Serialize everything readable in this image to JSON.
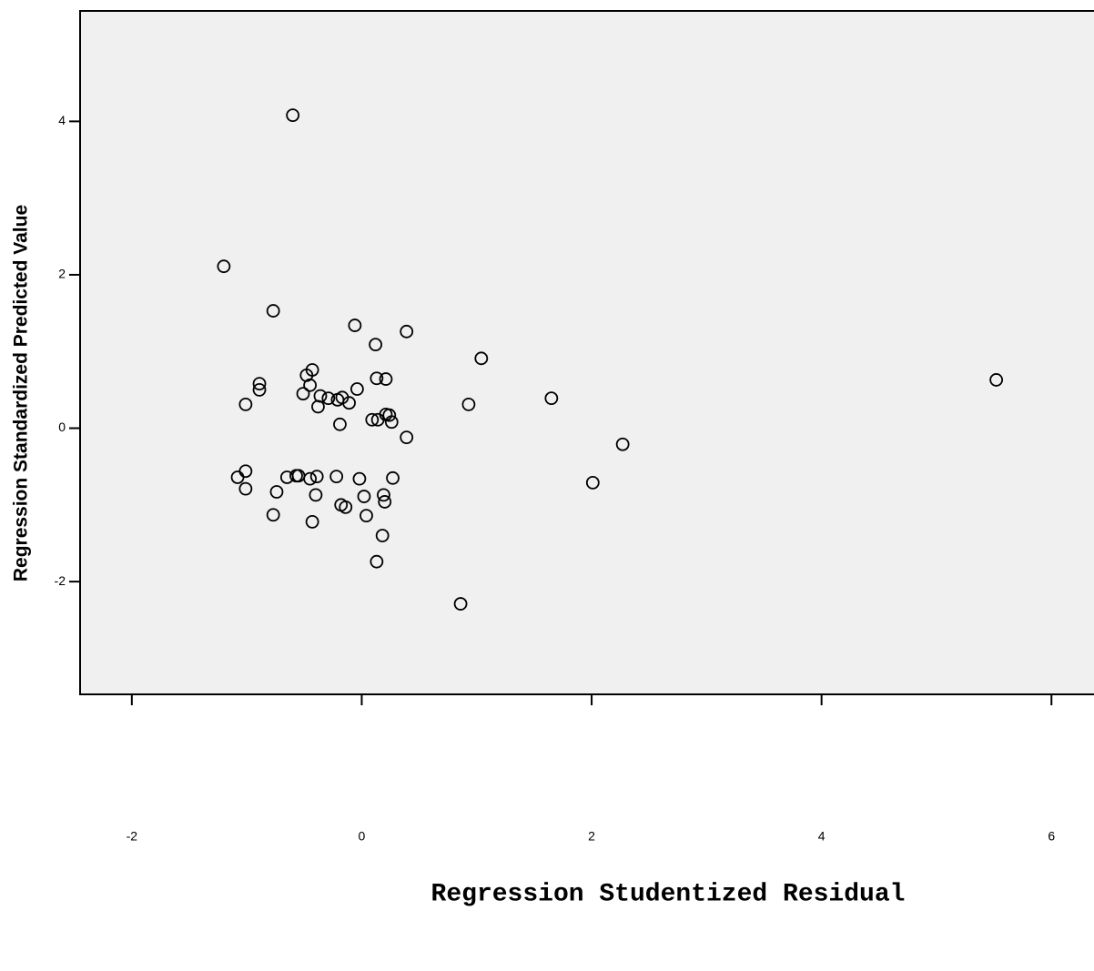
{
  "chart_data": {
    "type": "scatter",
    "xlabel": "Regression Studentized Residual",
    "ylabel": "Regression Standardized Predicted Value",
    "xlim": [
      -2.45,
      6.37
    ],
    "ylim": [
      -3.47,
      5.44
    ],
    "xticks": [
      -2,
      0,
      2,
      4,
      6
    ],
    "yticks": [
      -2,
      0,
      2,
      4
    ],
    "color": "#000000",
    "x": [
      -0.6,
      -1.2,
      -0.77,
      -0.06,
      0.39,
      0.12,
      1.04,
      -0.43,
      -0.48,
      0.13,
      0.21,
      5.52,
      -0.89,
      -0.45,
      -0.89,
      -0.04,
      -0.51,
      -0.36,
      -0.29,
      1.65,
      -0.17,
      -0.21,
      -0.11,
      -1.01,
      0.93,
      -0.38,
      0.21,
      0.24,
      0.09,
      0.14,
      0.26,
      -0.19,
      0.39,
      2.27,
      -1.01,
      -1.08,
      -0.57,
      -0.55,
      -0.65,
      -0.39,
      -0.22,
      -0.45,
      -0.02,
      0.27,
      2.01,
      -1.01,
      -0.74,
      -0.4,
      0.19,
      0.02,
      0.2,
      -0.18,
      -0.14,
      -0.77,
      0.04,
      -0.43,
      0.18,
      0.13,
      0.86
    ],
    "y": [
      4.08,
      2.11,
      1.53,
      1.34,
      1.26,
      1.09,
      0.91,
      0.76,
      0.69,
      0.65,
      0.64,
      0.63,
      0.58,
      0.56,
      0.5,
      0.51,
      0.45,
      0.42,
      0.39,
      0.39,
      0.4,
      0.37,
      0.33,
      0.31,
      0.31,
      0.28,
      0.18,
      0.17,
      0.11,
      0.11,
      0.08,
      0.05,
      -0.12,
      -0.21,
      -0.56,
      -0.64,
      -0.62,
      -0.62,
      -0.64,
      -0.63,
      -0.63,
      -0.66,
      -0.66,
      -0.65,
      -0.71,
      -0.79,
      -0.83,
      -0.87,
      -0.87,
      -0.89,
      -0.96,
      -1.0,
      -1.03,
      -1.13,
      -1.14,
      -1.22,
      -1.4,
      -1.74,
      -2.29
    ]
  }
}
